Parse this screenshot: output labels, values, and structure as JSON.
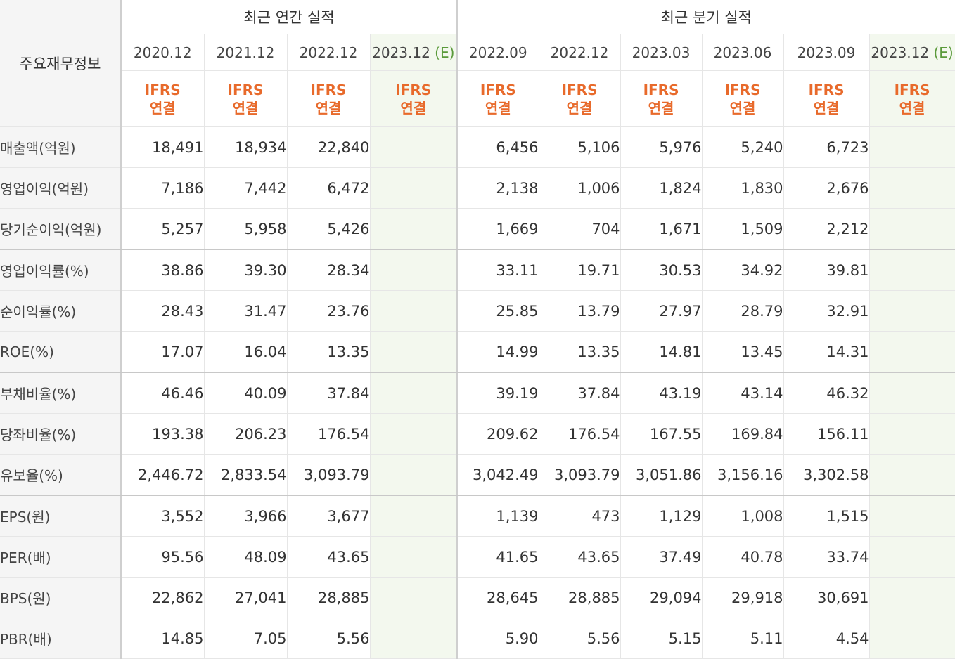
{
  "header": {
    "corner_label": "주요재무정보",
    "annual_title": "최근 연간 실적",
    "quarterly_title": "최근 분기 실적"
  },
  "annual_periods": [
    {
      "label": "2020.12",
      "estimate": ""
    },
    {
      "label": "2021.12",
      "estimate": ""
    },
    {
      "label": "2022.12",
      "estimate": ""
    },
    {
      "label": "2023.12",
      "estimate": "(E)"
    }
  ],
  "quarterly_periods": [
    {
      "label": "2022.09",
      "estimate": ""
    },
    {
      "label": "2022.12",
      "estimate": ""
    },
    {
      "label": "2023.03",
      "estimate": ""
    },
    {
      "label": "2023.06",
      "estimate": ""
    },
    {
      "label": "2023.09",
      "estimate": ""
    },
    {
      "label": "2023.12",
      "estimate": "(E)"
    }
  ],
  "ifrs": {
    "line1": "IFRS",
    "line2": "연결"
  },
  "colors": {
    "ifrs": "#e86a2b",
    "estimate_bg": "#f3f8ee",
    "estimate_mark": "#5a9a3a",
    "label_bg": "#f5f5f5"
  },
  "rows": [
    {
      "label": "매출액(억원)",
      "annual": [
        "18,491",
        "18,934",
        "22,840",
        ""
      ],
      "quarterly": [
        "6,456",
        "5,106",
        "5,976",
        "5,240",
        "6,723",
        ""
      ]
    },
    {
      "label": "영업이익(억원)",
      "annual": [
        "7,186",
        "7,442",
        "6,472",
        ""
      ],
      "quarterly": [
        "2,138",
        "1,006",
        "1,824",
        "1,830",
        "2,676",
        ""
      ]
    },
    {
      "label": "당기순이익(억원)",
      "annual": [
        "5,257",
        "5,958",
        "5,426",
        ""
      ],
      "quarterly": [
        "1,669",
        "704",
        "1,671",
        "1,509",
        "2,212",
        ""
      ]
    },
    {
      "label": "영업이익률(%)",
      "annual": [
        "38.86",
        "39.30",
        "28.34",
        ""
      ],
      "quarterly": [
        "33.11",
        "19.71",
        "30.53",
        "34.92",
        "39.81",
        ""
      ]
    },
    {
      "label": "순이익률(%)",
      "annual": [
        "28.43",
        "31.47",
        "23.76",
        ""
      ],
      "quarterly": [
        "25.85",
        "13.79",
        "27.97",
        "28.79",
        "32.91",
        ""
      ]
    },
    {
      "label": "ROE(%)",
      "annual": [
        "17.07",
        "16.04",
        "13.35",
        ""
      ],
      "quarterly": [
        "14.99",
        "13.35",
        "14.81",
        "13.45",
        "14.31",
        ""
      ]
    },
    {
      "label": "부채비율(%)",
      "annual": [
        "46.46",
        "40.09",
        "37.84",
        ""
      ],
      "quarterly": [
        "39.19",
        "37.84",
        "43.19",
        "43.14",
        "46.32",
        ""
      ]
    },
    {
      "label": "당좌비율(%)",
      "annual": [
        "193.38",
        "206.23",
        "176.54",
        ""
      ],
      "quarterly": [
        "209.62",
        "176.54",
        "167.55",
        "169.84",
        "156.11",
        ""
      ]
    },
    {
      "label": "유보율(%)",
      "annual": [
        "2,446.72",
        "2,833.54",
        "3,093.79",
        ""
      ],
      "quarterly": [
        "3,042.49",
        "3,093.79",
        "3,051.86",
        "3,156.16",
        "3,302.58",
        ""
      ]
    },
    {
      "label": "EPS(원)",
      "annual": [
        "3,552",
        "3,966",
        "3,677",
        ""
      ],
      "quarterly": [
        "1,139",
        "473",
        "1,129",
        "1,008",
        "1,515",
        ""
      ]
    },
    {
      "label": "PER(배)",
      "annual": [
        "95.56",
        "48.09",
        "43.65",
        ""
      ],
      "quarterly": [
        "41.65",
        "43.65",
        "37.49",
        "40.78",
        "33.74",
        ""
      ]
    },
    {
      "label": "BPS(원)",
      "annual": [
        "22,862",
        "27,041",
        "28,885",
        ""
      ],
      "quarterly": [
        "28,645",
        "28,885",
        "29,094",
        "29,918",
        "30,691",
        ""
      ]
    },
    {
      "label": "PBR(배)",
      "annual": [
        "14.85",
        "7.05",
        "5.56",
        ""
      ],
      "quarterly": [
        "5.90",
        "5.56",
        "5.15",
        "5.11",
        "4.54",
        ""
      ]
    }
  ]
}
